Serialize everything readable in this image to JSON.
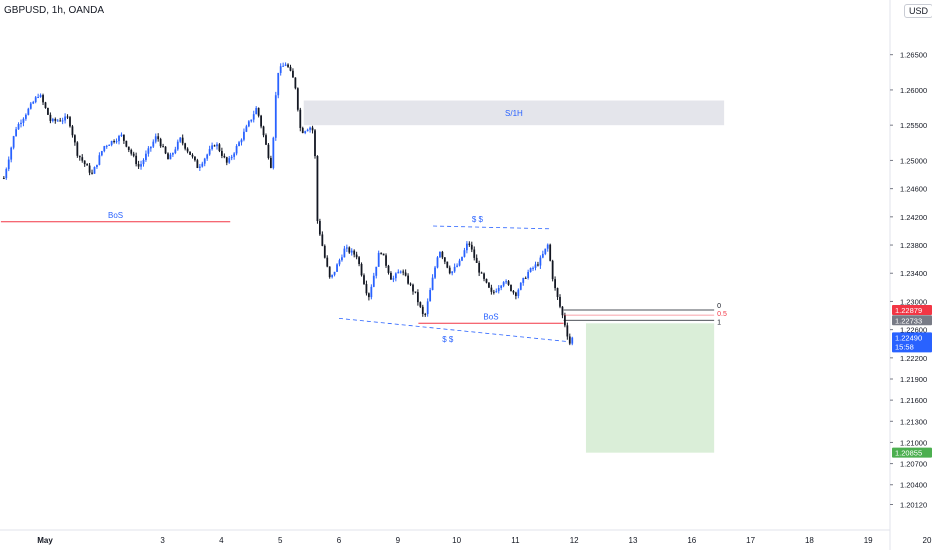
{
  "header": {
    "title": "GBPUSD, 1h, OANDA",
    "currency_button": "USD"
  },
  "colors": {
    "bull": "#2962ff",
    "bear": "#131722",
    "bos_line": "#f23645",
    "zone_fill": "#dfe1e8",
    "target_fill": "#d6ecd4",
    "stop_marker": "#f23645",
    "entry_marker": "#787b86",
    "current_marker": "#2962ff",
    "target_marker": "#4caf50"
  },
  "chart_data": {
    "type": "candlestick",
    "symbol": "GBPUSD",
    "timeframe": "1h",
    "ylim": [
      1.199,
      1.2685
    ],
    "y_ticks": [
      "1.26500",
      "1.26000",
      "1.25500",
      "1.25000",
      "1.24600",
      "1.24200",
      "1.23800",
      "1.23400",
      "1.23000",
      "1.22600",
      "1.22200",
      "1.21900",
      "1.21600",
      "1.21300",
      "1.21000",
      "1.20700",
      "1.20400",
      "1.20120"
    ],
    "x_labels": [
      {
        "label": "May",
        "day": 0
      },
      {
        "label": "3",
        "day": 2
      },
      {
        "label": "4",
        "day": 3
      },
      {
        "label": "5",
        "day": 4
      },
      {
        "label": "6",
        "day": 5
      },
      {
        "label": "9",
        "day": 6
      },
      {
        "label": "10",
        "day": 7
      },
      {
        "label": "11",
        "day": 8
      },
      {
        "label": "12",
        "day": 9
      },
      {
        "label": "13",
        "day": 10
      },
      {
        "label": "16",
        "day": 11
      },
      {
        "label": "17",
        "day": 12
      },
      {
        "label": "18",
        "day": 13
      },
      {
        "label": "19",
        "day": 14
      },
      {
        "label": "20",
        "day": 15
      }
    ],
    "price_path": [
      [
        -0.7,
        1.2475
      ],
      [
        -0.5,
        1.2545
      ],
      [
        -0.3,
        1.257
      ],
      [
        -0.1,
        1.2595
      ],
      [
        0.1,
        1.2555
      ],
      [
        0.4,
        1.256
      ],
      [
        0.55,
        1.251
      ],
      [
        0.8,
        1.248
      ],
      [
        1.0,
        1.252
      ],
      [
        1.3,
        1.2535
      ],
      [
        1.6,
        1.249
      ],
      [
        1.9,
        1.2535
      ],
      [
        2.1,
        1.25
      ],
      [
        2.3,
        1.253
      ],
      [
        2.5,
        1.2505
      ],
      [
        2.6,
        1.249
      ],
      [
        2.9,
        1.2525
      ],
      [
        3.1,
        1.2495
      ],
      [
        3.3,
        1.2525
      ],
      [
        3.6,
        1.2575
      ],
      [
        3.85,
        1.249
      ],
      [
        3.95,
        1.2625
      ],
      [
        4.1,
        1.2638
      ],
      [
        4.25,
        1.261
      ],
      [
        4.35,
        1.254
      ],
      [
        4.5,
        1.2548
      ],
      [
        4.58,
        1.254
      ],
      [
        4.62,
        1.242
      ],
      [
        4.75,
        1.2365
      ],
      [
        4.85,
        1.233
      ],
      [
        5.1,
        1.2375
      ],
      [
        5.3,
        1.2365
      ],
      [
        5.5,
        1.2305
      ],
      [
        5.7,
        1.2375
      ],
      [
        5.9,
        1.233
      ],
      [
        6.05,
        1.2345
      ],
      [
        6.3,
        1.231
      ],
      [
        6.45,
        1.2275
      ],
      [
        6.7,
        1.2375
      ],
      [
        6.9,
        1.234
      ],
      [
        7.05,
        1.2355
      ],
      [
        7.2,
        1.2385
      ],
      [
        7.4,
        1.234
      ],
      [
        7.6,
        1.231
      ],
      [
        7.8,
        1.233
      ],
      [
        8.0,
        1.231
      ],
      [
        8.2,
        1.234
      ],
      [
        8.4,
        1.2355
      ],
      [
        8.55,
        1.238
      ],
      [
        8.65,
        1.2325
      ],
      [
        8.75,
        1.2295
      ],
      [
        8.85,
        1.2265
      ],
      [
        8.92,
        1.224
      ],
      [
        8.98,
        1.225
      ]
    ],
    "annotations": {
      "supply_zone": {
        "label": "S/1H",
        "x_from": 4.4,
        "x_to": 11.55,
        "y_top": 1.2585,
        "y_bottom": 1.255
      },
      "bos_upper": {
        "label": "BoS",
        "price": 1.2413,
        "x_from": -0.75,
        "x_to": 3.15
      },
      "bos_lower": {
        "label": "BoS",
        "price": 1.2269,
        "x_from": 6.35,
        "x_to": 8.82
      },
      "liquidity_top": {
        "label": "$  $",
        "points": [
          [
            6.6,
            1.2407
          ],
          [
            8.6,
            1.2403
          ]
        ]
      },
      "liquidity_bottom": {
        "label": "$  $",
        "points": [
          [
            5.0,
            1.2276
          ],
          [
            8.9,
            1.2243
          ]
        ]
      },
      "fib": {
        "x_from": 8.82,
        "x_to": 11.38,
        "levels": [
          {
            "label": "0",
            "price": 1.22879
          },
          {
            "label": "0.5",
            "price": 1.22806
          },
          {
            "label": "1",
            "price": 1.22733
          }
        ]
      },
      "target_zone": {
        "x_from": 9.2,
        "x_to": 11.38,
        "y_top": 1.2269,
        "y_bottom": 1.20855
      }
    },
    "price_markers": [
      {
        "label": "1.22879",
        "price": 1.22879,
        "role": "stop"
      },
      {
        "label": "1.22733",
        "price": 1.22733,
        "role": "entry"
      },
      {
        "label": "1.22490",
        "sub": "15:58",
        "price": 1.2249,
        "role": "current"
      },
      {
        "label": "1.20855",
        "price": 1.20855,
        "role": "target"
      }
    ]
  }
}
